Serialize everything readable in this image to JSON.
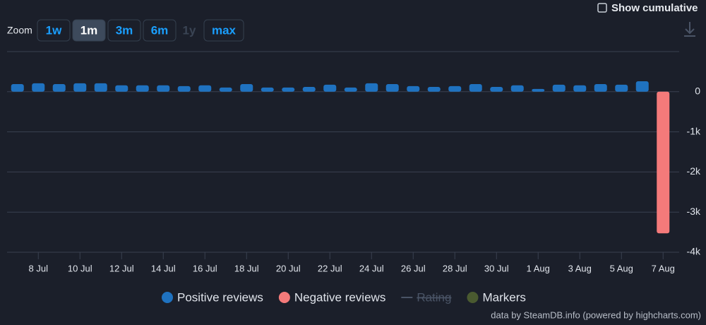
{
  "ui": {
    "show_cumulative": "Show cumulative",
    "zoom_label": "Zoom",
    "zoom_buttons": [
      "1w",
      "1m",
      "3m",
      "6m",
      "1y",
      "max"
    ],
    "zoom_selected": "1m",
    "zoom_disabled": [
      "1y"
    ],
    "credits": "data by SteamDB.info (powered by highcharts.com)"
  },
  "chart_data": {
    "type": "bar",
    "categories": [
      null,
      "8 Jul",
      null,
      "10 Jul",
      null,
      "12 Jul",
      null,
      "14 Jul",
      null,
      "16 Jul",
      null,
      "18 Jul",
      null,
      "20 Jul",
      null,
      "22 Jul",
      null,
      "24 Jul",
      null,
      "26 Jul",
      null,
      "28 Jul",
      null,
      "30 Jul",
      null,
      "1 Aug",
      null,
      "3 Aug",
      null,
      "5 Aug",
      null,
      "7 Aug"
    ],
    "series": [
      {
        "name": "Positive reviews",
        "color": "#1f72c0",
        "values": [
          190,
          210,
          190,
          210,
          210,
          160,
          160,
          160,
          140,
          160,
          105,
          190,
          105,
          105,
          120,
          175,
          105,
          210,
          190,
          140,
          120,
          140,
          190,
          120,
          160,
          70,
          175,
          160,
          190,
          175,
          260,
          null
        ]
      },
      {
        "name": "Negative reviews",
        "color": "#f47a7a",
        "values": [
          null,
          null,
          null,
          null,
          null,
          null,
          null,
          null,
          null,
          null,
          null,
          null,
          null,
          null,
          null,
          null,
          null,
          null,
          null,
          null,
          null,
          null,
          null,
          null,
          null,
          null,
          null,
          null,
          null,
          null,
          null,
          -3530
        ]
      }
    ],
    "extra_legend": [
      {
        "name": "Rating",
        "color": "#4a5466",
        "hidden": true
      },
      {
        "name": "Markers",
        "color": "#4a5a30"
      }
    ],
    "ylim": [
      -4000,
      1000
    ],
    "yticks": [
      0,
      {
        "value": -1000,
        "label": "-1k"
      },
      {
        "value": -2000,
        "label": "-2k"
      },
      {
        "value": -3000,
        "label": "-3k"
      },
      {
        "value": -4000,
        "label": "-4k"
      }
    ],
    "grid": true
  }
}
